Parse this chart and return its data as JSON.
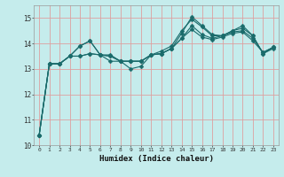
{
  "xlabel": "Humidex (Indice chaleur)",
  "bg_color": "#c5ecec",
  "grid_color": "#dda0a0",
  "line_color": "#1a6b6b",
  "markersize": 2.5,
  "xlim": [
    -0.5,
    23.5
  ],
  "ylim": [
    10,
    15.5
  ],
  "yticks": [
    10,
    11,
    12,
    13,
    14,
    15
  ],
  "xticks": [
    0,
    1,
    2,
    3,
    4,
    5,
    6,
    7,
    8,
    9,
    10,
    11,
    12,
    13,
    14,
    15,
    16,
    17,
    18,
    19,
    20,
    21,
    22,
    23
  ],
  "series": [
    [
      10.4,
      13.2,
      13.2,
      13.5,
      13.9,
      14.1,
      13.55,
      13.55,
      13.3,
      13.0,
      13.1,
      13.55,
      13.6,
      13.8,
      14.4,
      15.05,
      14.7,
      14.35,
      14.3,
      14.5,
      14.7,
      14.3,
      13.6,
      13.8
    ],
    [
      10.4,
      13.2,
      13.2,
      13.5,
      13.9,
      14.1,
      13.55,
      13.3,
      13.3,
      13.3,
      13.3,
      13.55,
      13.7,
      13.9,
      14.5,
      14.95,
      14.65,
      14.3,
      14.3,
      14.5,
      14.6,
      14.3,
      13.6,
      13.85
    ],
    [
      10.4,
      13.2,
      13.2,
      13.5,
      13.5,
      13.6,
      13.55,
      13.5,
      13.3,
      13.3,
      13.3,
      13.55,
      13.6,
      13.8,
      14.2,
      14.7,
      14.35,
      14.2,
      14.3,
      14.45,
      14.5,
      14.2,
      13.65,
      13.85
    ],
    [
      10.4,
      13.2,
      13.2,
      13.5,
      13.5,
      13.6,
      13.55,
      13.5,
      13.3,
      13.3,
      13.3,
      13.55,
      13.6,
      13.8,
      14.2,
      14.55,
      14.25,
      14.15,
      14.25,
      14.4,
      14.45,
      14.1,
      13.65,
      13.85
    ]
  ]
}
